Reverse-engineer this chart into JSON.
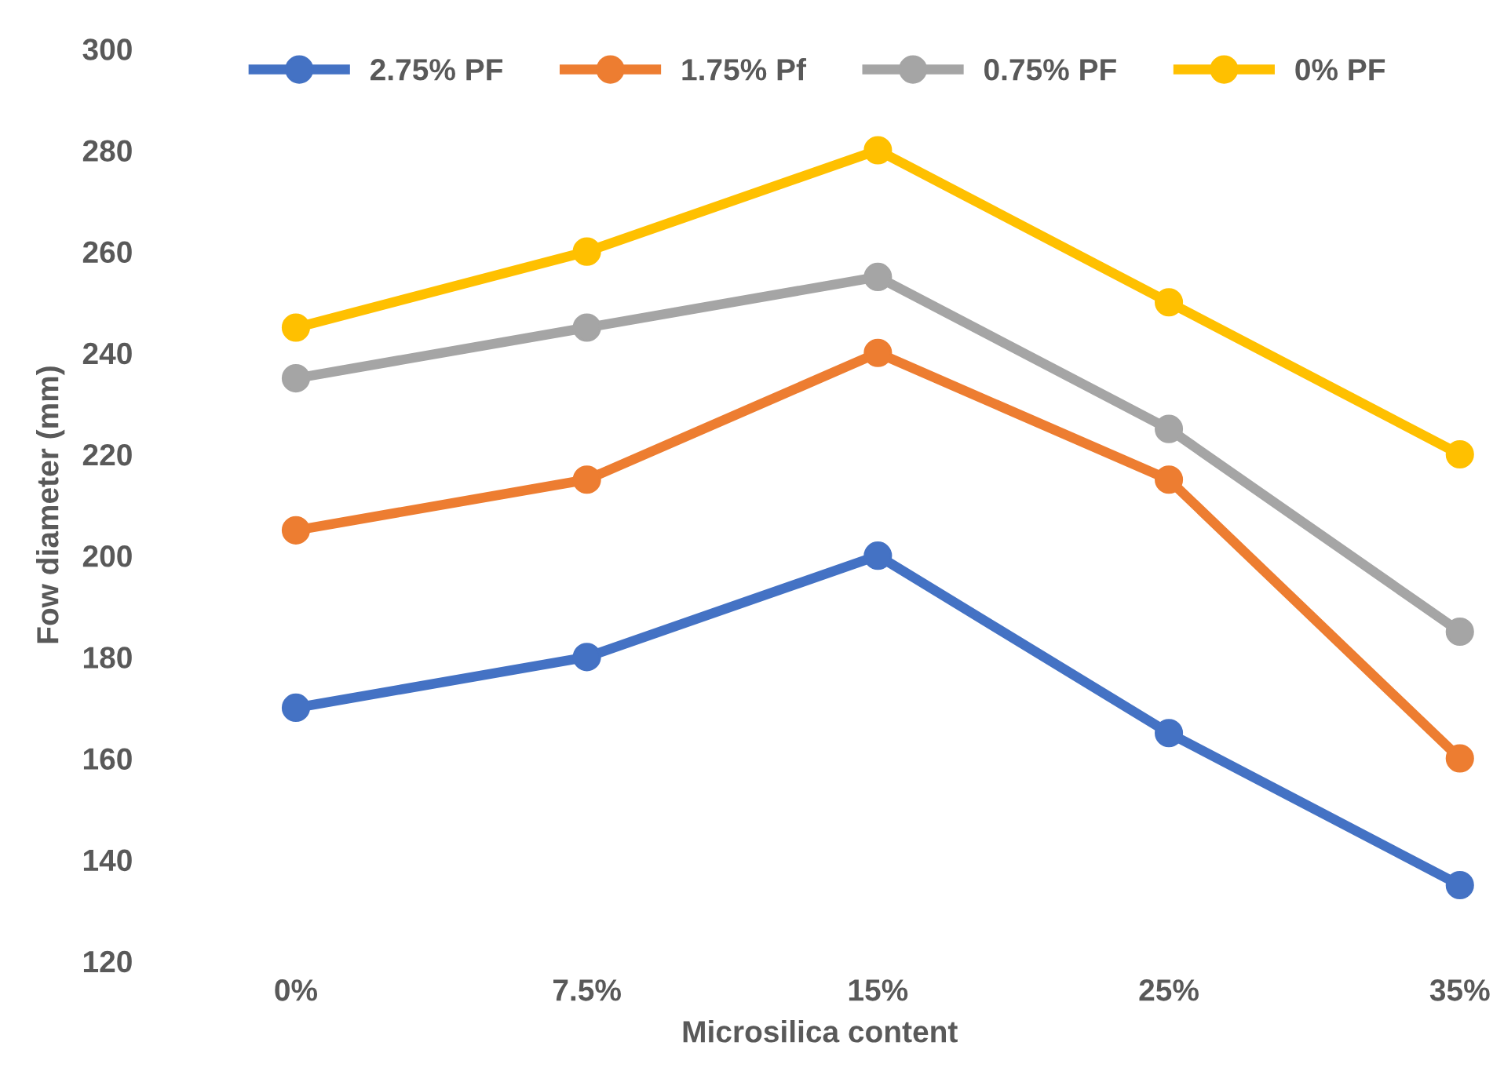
{
  "chart_data": {
    "type": "line",
    "xlabel": "Microsilica content",
    "ylabel": "Fow diameter (mm)",
    "categories": [
      "0%",
      "7.5%",
      "15%",
      "25%",
      "35%"
    ],
    "series": [
      {
        "name": "2.75% PF",
        "color": "#4472c4",
        "values": [
          170,
          180,
          200,
          165,
          135
        ]
      },
      {
        "name": "1.75% Pf",
        "color": "#ed7d31",
        "values": [
          205,
          215,
          240,
          215,
          160
        ]
      },
      {
        "name": "0.75% PF",
        "color": "#a5a5a5",
        "values": [
          235,
          245,
          255,
          225,
          185
        ]
      },
      {
        "name": "0% PF",
        "color": "#ffc000",
        "values": [
          245,
          260,
          280,
          250,
          220
        ]
      }
    ],
    "ylim": [
      120,
      300
    ],
    "yticks": [
      120,
      140,
      160,
      180,
      200,
      220,
      240,
      260,
      280,
      300
    ],
    "grid": false,
    "legend": "top",
    "marker": "circle",
    "line_style": "solid"
  }
}
